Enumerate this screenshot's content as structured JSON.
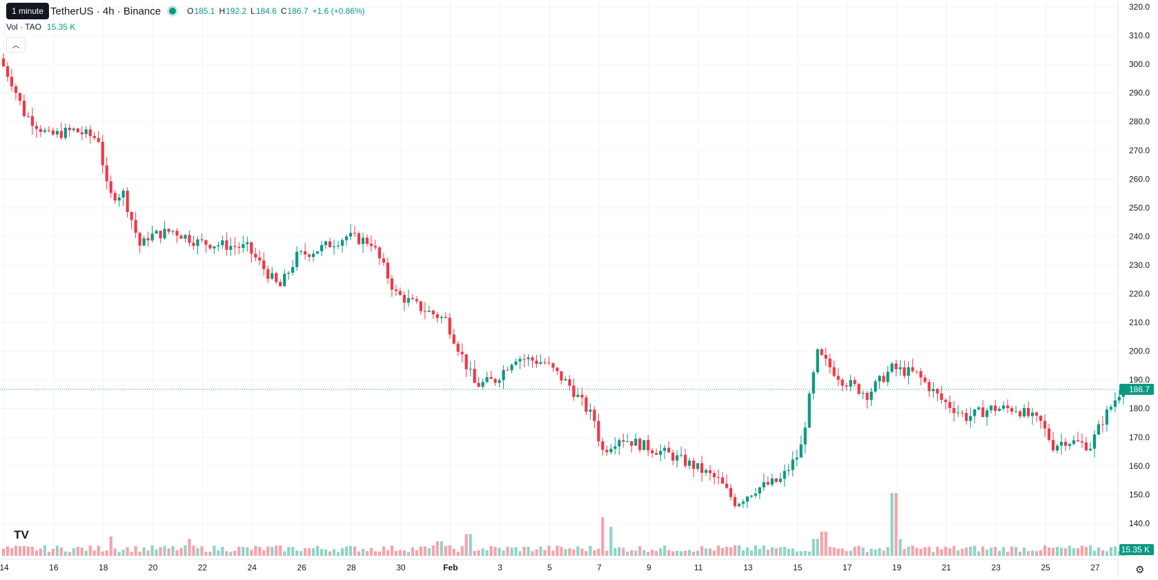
{
  "header": {
    "tooltip": "1 minute",
    "symbol": "TetherUS · 4h · Binance",
    "ohlc": {
      "o_label": "O",
      "o": "185.1",
      "h_label": "H",
      "h": "192.2",
      "l_label": "L",
      "l": "184.6",
      "c_label": "C",
      "c": "186.7",
      "change": "+1.6 (+0.86%)"
    },
    "vol_label": "Vol · TAO",
    "vol_value": "15.35 K",
    "collapse_icon": "chevron-up-icon"
  },
  "price_badge": "186.7",
  "volume_badge": "15.35 K",
  "colors": {
    "up": "#089981",
    "down": "#f23645",
    "up_vol": "#8fd3c8",
    "down_vol": "#f5a3a9",
    "grid": "#f0f3fa"
  },
  "chart_data": {
    "type": "candlestick",
    "title": "",
    "xlabel": "",
    "ylabel": "",
    "ylim": [
      130,
      320
    ],
    "y_ticks": [
      "320.0",
      "310.0",
      "300.0",
      "290.0",
      "280.0",
      "270.0",
      "260.0",
      "250.0",
      "240.0",
      "230.0",
      "220.0",
      "210.0",
      "200.0",
      "190.0",
      "180.0",
      "170.0",
      "160.0",
      "150.0",
      "140.0"
    ],
    "x_ticks": [
      "14",
      "16",
      "18",
      "20",
      "22",
      "24",
      "26",
      "28",
      "30",
      "Feb",
      "3",
      "5",
      "7",
      "9",
      "11",
      "13",
      "15",
      "17",
      "19",
      "21",
      "23",
      "25",
      "27"
    ],
    "candles_per_day": 6,
    "current_price": 186.7,
    "anchors": [
      {
        "day": 0,
        "price": 302
      },
      {
        "day": 0.5,
        "price": 294
      },
      {
        "day": 1,
        "price": 283
      },
      {
        "day": 2,
        "price": 275
      },
      {
        "day": 3,
        "price": 277
      },
      {
        "day": 4,
        "price": 274
      },
      {
        "day": 4.4,
        "price": 254
      },
      {
        "day": 5,
        "price": 255
      },
      {
        "day": 5.7,
        "price": 236
      },
      {
        "day": 6,
        "price": 240
      },
      {
        "day": 7,
        "price": 242
      },
      {
        "day": 8,
        "price": 238
      },
      {
        "day": 9,
        "price": 237
      },
      {
        "day": 10,
        "price": 236
      },
      {
        "day": 11.3,
        "price": 222
      },
      {
        "day": 12,
        "price": 233
      },
      {
        "day": 13,
        "price": 236
      },
      {
        "day": 14,
        "price": 240
      },
      {
        "day": 15,
        "price": 238
      },
      {
        "day": 16,
        "price": 220
      },
      {
        "day": 17,
        "price": 215
      },
      {
        "day": 18,
        "price": 211
      },
      {
        "day": 19.2,
        "price": 188
      },
      {
        "day": 20,
        "price": 190
      },
      {
        "day": 20.8,
        "price": 198
      },
      {
        "day": 22,
        "price": 196
      },
      {
        "day": 23,
        "price": 188
      },
      {
        "day": 24,
        "price": 176
      },
      {
        "day": 24.3,
        "price": 165
      },
      {
        "day": 25,
        "price": 170
      },
      {
        "day": 26,
        "price": 167
      },
      {
        "day": 27,
        "price": 164
      },
      {
        "day": 28,
        "price": 160
      },
      {
        "day": 29,
        "price": 155
      },
      {
        "day": 29.7,
        "price": 147
      },
      {
        "day": 30.5,
        "price": 152
      },
      {
        "day": 31.5,
        "price": 155
      },
      {
        "day": 32.3,
        "price": 165
      },
      {
        "day": 32.8,
        "price": 190
      },
      {
        "day": 33,
        "price": 199
      },
      {
        "day": 34,
        "price": 190
      },
      {
        "day": 35,
        "price": 185
      },
      {
        "day": 36,
        "price": 194
      },
      {
        "day": 37,
        "price": 192
      },
      {
        "day": 38,
        "price": 183
      },
      {
        "day": 39,
        "price": 177
      },
      {
        "day": 40,
        "price": 180
      },
      {
        "day": 41,
        "price": 180
      },
      {
        "day": 42,
        "price": 175
      },
      {
        "day": 42.5,
        "price": 167
      },
      {
        "day": 43,
        "price": 169
      },
      {
        "day": 44,
        "price": 167
      },
      {
        "day": 44.5,
        "price": 176
      },
      {
        "day": 45.2,
        "price": 186
      }
    ],
    "volume_spikes": [
      {
        "day": 4.3,
        "level": 4
      },
      {
        "day": 7.5,
        "level": 3.5
      },
      {
        "day": 17.6,
        "level": 3
      },
      {
        "day": 18.7,
        "level": 4.5
      },
      {
        "day": 24.2,
        "level": 8
      },
      {
        "day": 24.5,
        "level": 6
      },
      {
        "day": 29.6,
        "level": 2.2
      },
      {
        "day": 32.8,
        "level": 3.5
      },
      {
        "day": 33.1,
        "level": 5
      },
      {
        "day": 35.9,
        "level": 13
      },
      {
        "day": 36.1,
        "level": 3.5
      }
    ]
  }
}
